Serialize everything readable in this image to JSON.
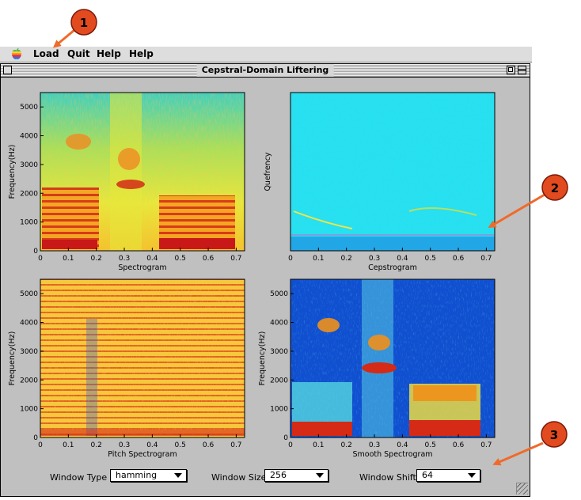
{
  "menubar": {
    "apple_icon": "apple-logo-icon",
    "items": [
      {
        "label": "Load"
      },
      {
        "label": "Quit"
      },
      {
        "label": "Help"
      },
      {
        "label": "Help"
      }
    ]
  },
  "window": {
    "title": "Cepstral-Domain Liftering"
  },
  "callouts": [
    {
      "label": "1"
    },
    {
      "label": "2"
    },
    {
      "label": "3"
    }
  ],
  "colors": {
    "callout_fill": "#e24a1f",
    "callout_arrow": "#f06a2a",
    "spec_bg": "#d8df38",
    "ceps_bg": "#27e0f0",
    "smooth_bg": "#1050d0"
  },
  "chart_data": [
    {
      "type": "heatmap",
      "xlabel": "Spectrogram",
      "ylabel": "Frequency(Hz)",
      "x_ticks": [
        "0",
        "0.1",
        "0.2",
        "0.3",
        "0.4",
        "0.5",
        "0.6",
        "0.7"
      ],
      "y_ticks": [
        "0",
        "1000",
        "2000",
        "3000",
        "4000",
        "5000"
      ],
      "xlim": [
        0,
        0.73
      ],
      "ylim": [
        0,
        5500
      ]
    },
    {
      "type": "heatmap",
      "xlabel": "Cepstrogram",
      "ylabel": "Quefrency",
      "x_ticks": [
        "0",
        "0.1",
        "0.2",
        "0.3",
        "0.4",
        "0.5",
        "0.6",
        "0.7"
      ],
      "y_ticks": [],
      "xlim": [
        0,
        0.73
      ]
    },
    {
      "type": "heatmap",
      "xlabel": "Pitch Spectrogram",
      "ylabel": "Frequency(Hz)",
      "x_ticks": [
        "0",
        "0.1",
        "0.2",
        "0.3",
        "0.4",
        "0.5",
        "0.6",
        "0.7"
      ],
      "y_ticks": [
        "0",
        "1000",
        "2000",
        "3000",
        "4000",
        "5000"
      ],
      "xlim": [
        0,
        0.73
      ],
      "ylim": [
        0,
        5500
      ]
    },
    {
      "type": "heatmap",
      "xlabel": "Smooth Spectrogram",
      "ylabel": "Frequency(Hz)",
      "x_ticks": [
        "0",
        "0.1",
        "0.2",
        "0.3",
        "0.4",
        "0.5",
        "0.6",
        "0.7"
      ],
      "y_ticks": [
        "0",
        "1000",
        "2000",
        "3000",
        "4000",
        "5000"
      ],
      "xlim": [
        0,
        0.73
      ],
      "ylim": [
        0,
        5500
      ]
    }
  ],
  "controls": {
    "window_type": {
      "label": "Window Type",
      "value": "hamming"
    },
    "window_size": {
      "label": "Window Size",
      "value": "256"
    },
    "window_shift": {
      "label": "Window Shift",
      "value": "64"
    }
  }
}
